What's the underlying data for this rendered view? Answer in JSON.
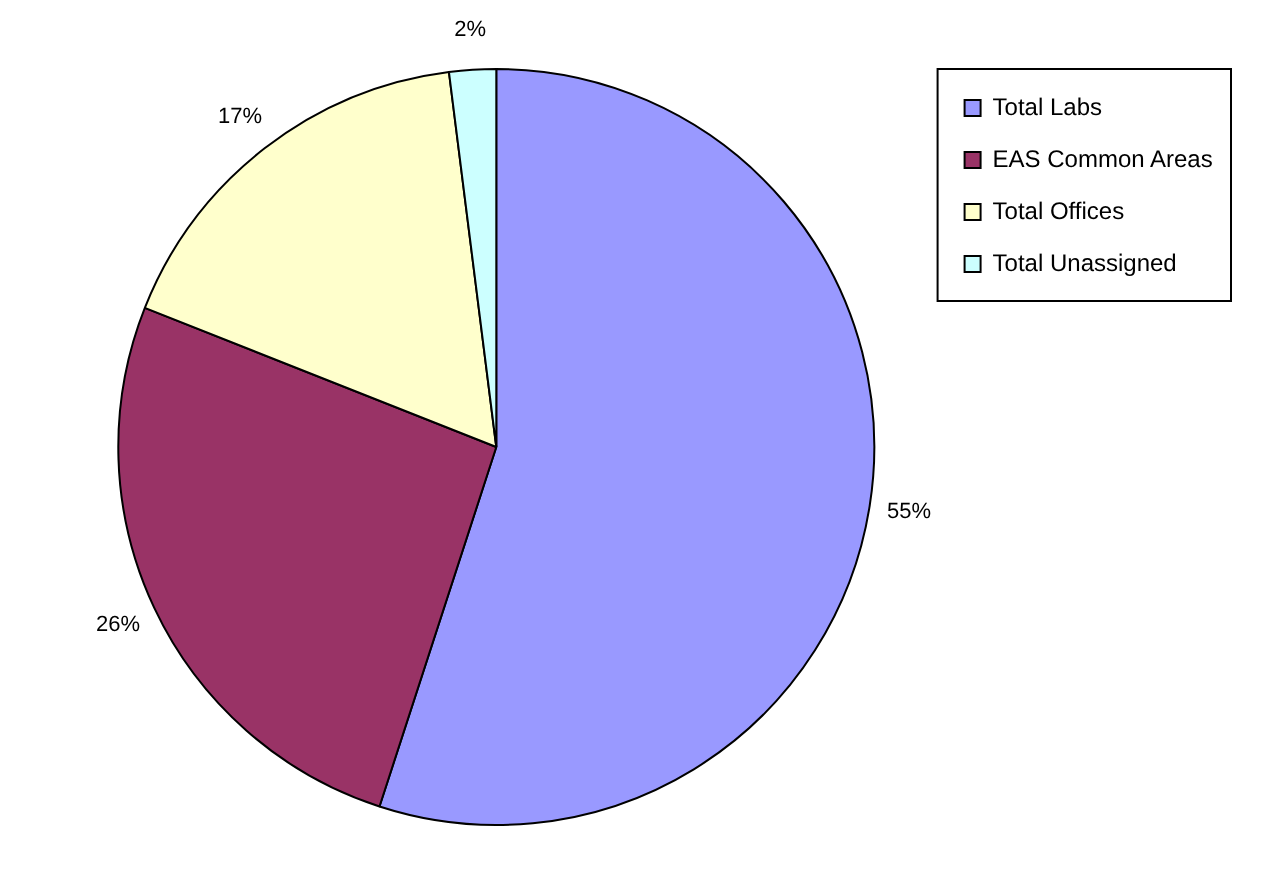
{
  "chart_data": {
    "type": "pie",
    "categories": [
      "Total Labs",
      "EAS Common Areas",
      "Total Offices",
      "Total Unassigned"
    ],
    "values": [
      55,
      26,
      17,
      2
    ],
    "colors": [
      "#9999ff",
      "#993366",
      "#ffffcc",
      "#ccffff"
    ],
    "value_labels": [
      "55%",
      "26%",
      "17%",
      "2%"
    ],
    "legend": "top right"
  }
}
